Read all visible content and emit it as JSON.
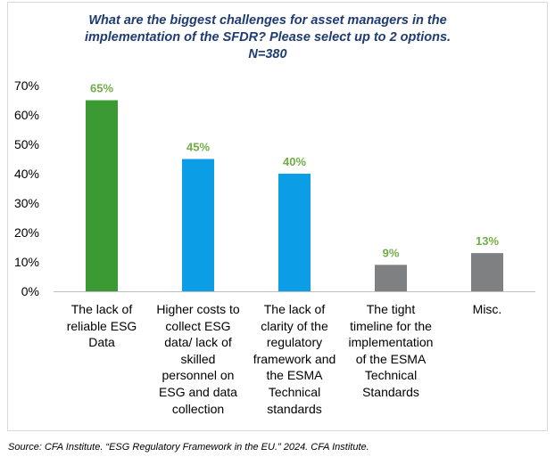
{
  "chart_data": {
    "type": "bar",
    "title_lines": [
      "What are the biggest challenges for asset managers  in the",
      "implementation of the SFDR? Please select up to 2 options.",
      "N=380"
    ],
    "categories": [
      "The lack of reliable ESG Data",
      "Higher costs to collect ESG data/ lack of skilled personnel on ESG and data collection",
      "The lack of clarity of the regulatory framework and the ESMA Technical standards",
      "The tight timeline for the implementation of the ESMA Technical Standards",
      "Misc."
    ],
    "category_lines": [
      [
        "The lack of",
        "reliable ESG",
        "Data"
      ],
      [
        "Higher costs to",
        "collect ESG",
        "data/ lack of",
        "skilled",
        "personnel on",
        "ESG and data",
        "collection"
      ],
      [
        "The lack of",
        "clarity of the",
        "regulatory",
        "framework and",
        "the ESMA",
        "Technical",
        "standards"
      ],
      [
        "The tight",
        "timeline for the",
        "implementation",
        "of the ESMA",
        "Technical",
        "Standards"
      ],
      [
        "Misc."
      ]
    ],
    "values": [
      65,
      45,
      40,
      9,
      13
    ],
    "data_labels": [
      "65%",
      "45%",
      "40%",
      "9%",
      "13%"
    ],
    "bar_colors": [
      "#3c9a35",
      "#0b9ee6",
      "#0b9ee6",
      "#7f8082",
      "#7f8082"
    ],
    "label_color": "#70ad47",
    "ylim": [
      0,
      70
    ],
    "yticks": [
      0,
      10,
      20,
      30,
      40,
      50,
      60,
      70
    ],
    "ytick_labels": [
      "0%",
      "10%",
      "20%",
      "30%",
      "40%",
      "50%",
      "60%",
      "70%"
    ],
    "grid": false,
    "legend": "none"
  },
  "source": "Source:  CFA Institute. “ESG Regulatory Framework  in the EU.” 2024. CFA Institute."
}
